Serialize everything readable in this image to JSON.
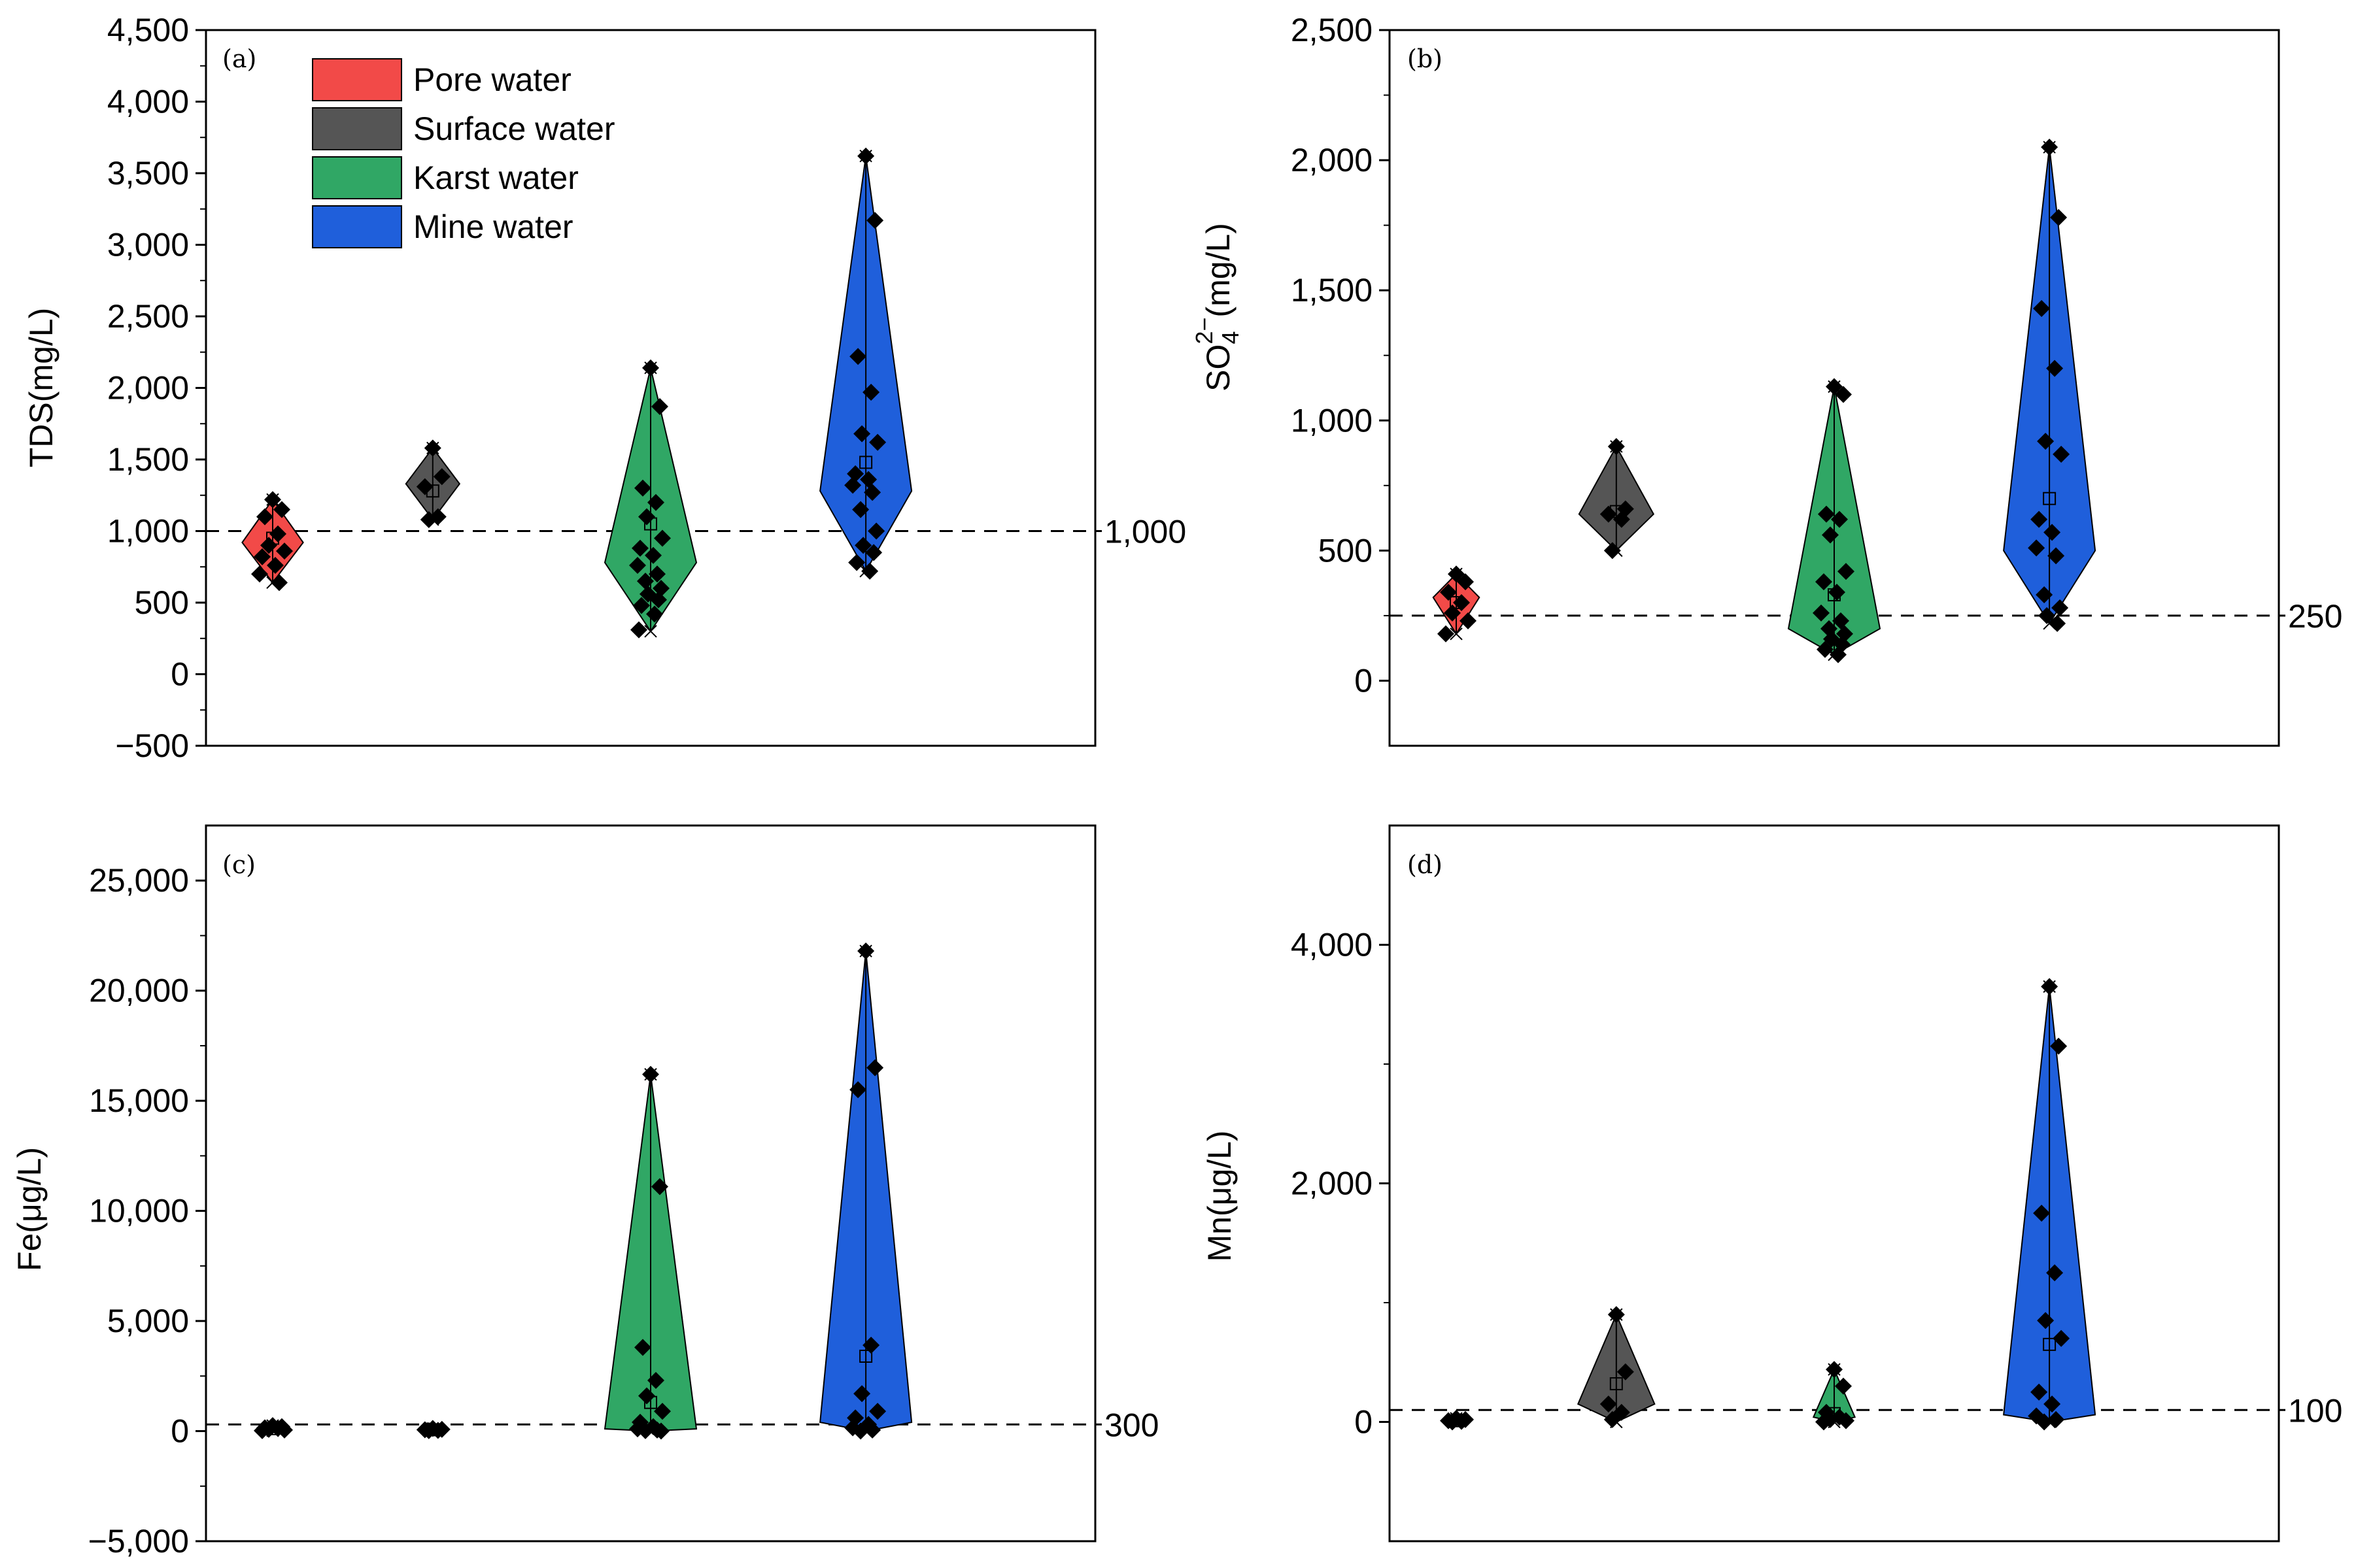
{
  "figure": {
    "groups": [
      "Pore water",
      "Surface water",
      "Karst water",
      "Mine water"
    ],
    "group_colors": [
      "#f24a48",
      "#555555",
      "#30a765",
      "#1f5fdb"
    ],
    "legend": {
      "placement": "top-left of panel (a)",
      "entries": [
        {
          "label": "Pore water",
          "color": "#f24a48"
        },
        {
          "label": "Surface water",
          "color": "#555555"
        },
        {
          "label": "Karst water",
          "color": "#30a765"
        },
        {
          "label": "Mine water",
          "color": "#1f5fdb"
        }
      ]
    }
  },
  "chart_data": [
    {
      "id": "a",
      "type": "violin-scatter",
      "panel_label": "(a)",
      "ylabel": "TDS(mg/L)",
      "ylim": [
        -500,
        4500
      ],
      "yticks": [
        -500,
        0,
        500,
        1000,
        1500,
        2000,
        2500,
        3000,
        3500,
        4000,
        4500
      ],
      "ytick_labels": [
        "−500",
        "0",
        "500",
        "1,000",
        "1,500",
        "2,000",
        "2,500",
        "3,000",
        "3,500",
        "4,000",
        "4,500"
      ],
      "reference": {
        "value": 1000,
        "label": "1,000"
      },
      "series": [
        {
          "name": "Pore water",
          "min": 640,
          "max": 1220,
          "mode": 920,
          "mean": 950,
          "points": [
            1220,
            1150,
            1100,
            980,
            900,
            860,
            820,
            760,
            700,
            640
          ]
        },
        {
          "name": "Surface water",
          "min": 1080,
          "max": 1580,
          "mode": 1330,
          "mean": 1280,
          "points": [
            1580,
            1380,
            1310,
            1100,
            1080
          ]
        },
        {
          "name": "Karst water",
          "min": 300,
          "max": 2140,
          "mode": 780,
          "mean": 1050,
          "points": [
            2140,
            1870,
            1300,
            1200,
            1100,
            950,
            880,
            830,
            760,
            700,
            650,
            600,
            560,
            520,
            480,
            420,
            310
          ]
        },
        {
          "name": "Mine water",
          "min": 720,
          "max": 3620,
          "mode": 1280,
          "mean": 1480,
          "points": [
            3620,
            3170,
            2220,
            1970,
            1680,
            1620,
            1400,
            1360,
            1320,
            1270,
            1150,
            1000,
            900,
            850,
            780,
            720
          ]
        }
      ]
    },
    {
      "id": "b",
      "type": "violin-scatter",
      "panel_label": "(b)",
      "ylabel": "SO4²⁻(mg/L)",
      "ylabel_parts": {
        "base": "SO",
        "sub": "4",
        "sup": "2−",
        "unit": "(mg/L)"
      },
      "ylim": [
        -250,
        2500
      ],
      "yticks": [
        0,
        500,
        1000,
        1500,
        2000,
        2500
      ],
      "ytick_labels": [
        "0",
        "500",
        "1,000",
        "1,500",
        "2,000",
        "2,500"
      ],
      "reference": {
        "value": 250,
        "label": "250"
      },
      "series": [
        {
          "name": "Pore water",
          "min": 180,
          "max": 410,
          "mode": 320,
          "mean": 300,
          "points": [
            410,
            380,
            340,
            300,
            260,
            230,
            180
          ]
        },
        {
          "name": "Surface water",
          "min": 500,
          "max": 900,
          "mode": 640,
          "mean": 650,
          "points": [
            900,
            660,
            640,
            620,
            500
          ]
        },
        {
          "name": "Karst water",
          "min": 100,
          "max": 1130,
          "mode": 200,
          "mean": 330,
          "points": [
            1130,
            1100,
            640,
            620,
            560,
            420,
            380,
            340,
            260,
            230,
            200,
            180,
            160,
            140,
            120,
            100
          ]
        },
        {
          "name": "Mine water",
          "min": 220,
          "max": 2050,
          "mode": 500,
          "mean": 700,
          "points": [
            2050,
            1780,
            1430,
            1200,
            920,
            870,
            620,
            570,
            510,
            480,
            330,
            280,
            250,
            220
          ]
        }
      ]
    },
    {
      "id": "c",
      "type": "violin-scatter",
      "panel_label": "(c)",
      "ylabel": "Fe(μg/L)",
      "ylim": [
        -5000,
        27500
      ],
      "yticks": [
        -5000,
        0,
        5000,
        10000,
        15000,
        20000,
        25000
      ],
      "ytick_labels": [
        "−5,000",
        "0",
        "5,000",
        "10,000",
        "15,000",
        "20,000",
        "25,000"
      ],
      "reference": {
        "value": 300,
        "label": "300"
      },
      "series": [
        {
          "name": "Pore water",
          "min": 20,
          "max": 250,
          "mode": 120,
          "mean": 110,
          "points": [
            250,
            200,
            150,
            120,
            80,
            50,
            20
          ]
        },
        {
          "name": "Surface water",
          "min": 20,
          "max": 120,
          "mode": 60,
          "mean": 60,
          "points": [
            120,
            80,
            60,
            30,
            20
          ]
        },
        {
          "name": "Karst water",
          "min": 0,
          "max": 16200,
          "mode": 100,
          "mean": 1300,
          "points": [
            16200,
            11100,
            3800,
            2300,
            1600,
            900,
            400,
            200,
            100,
            50,
            20,
            0
          ]
        },
        {
          "name": "Mine water",
          "min": 0,
          "max": 21800,
          "mode": 400,
          "mean": 3400,
          "points": [
            21800,
            16500,
            15500,
            3900,
            1700,
            900,
            600,
            300,
            150,
            50,
            0
          ]
        }
      ]
    },
    {
      "id": "d",
      "type": "violin-scatter",
      "panel_label": "(d)",
      "ylabel": "Mn(μg/L)",
      "ylim": [
        -1000,
        5000
      ],
      "yticks": [
        0,
        2000,
        4000
      ],
      "ytick_labels": [
        "0",
        "2,000",
        "4,000"
      ],
      "reference": {
        "value": 100,
        "label": "100"
      },
      "series": [
        {
          "name": "Pore water",
          "min": 0,
          "max": 30,
          "mode": 10,
          "mean": 10,
          "points": [
            30,
            20,
            10,
            5,
            0
          ]
        },
        {
          "name": "Surface water",
          "min": 0,
          "max": 900,
          "mode": 150,
          "mean": 320,
          "points": [
            900,
            420,
            150,
            80,
            20
          ]
        },
        {
          "name": "Karst water",
          "min": 0,
          "max": 440,
          "mode": 40,
          "mean": 70,
          "points": [
            440,
            300,
            80,
            40,
            20,
            10,
            0
          ]
        },
        {
          "name": "Mine water",
          "min": 0,
          "max": 3650,
          "mode": 60,
          "mean": 650,
          "points": [
            3650,
            3150,
            1750,
            1250,
            850,
            700,
            250,
            150,
            50,
            20,
            0
          ]
        }
      ]
    }
  ]
}
